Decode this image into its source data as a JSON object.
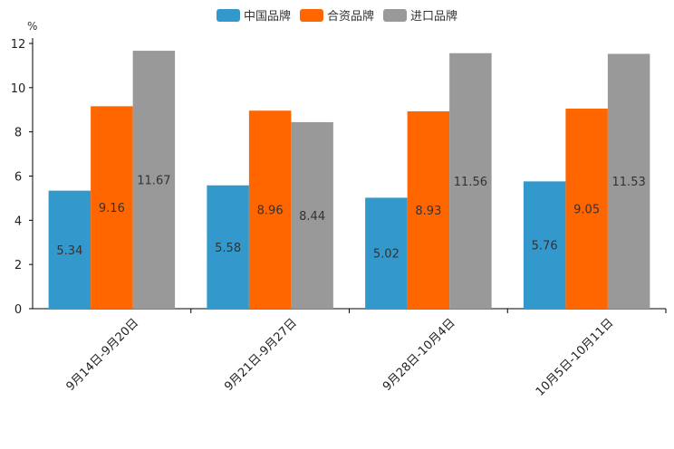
{
  "chart_data": {
    "type": "bar",
    "unit": "%",
    "categories": [
      "9月14日-9月20日",
      "9月21日-9月27日",
      "9月28日-10月4日",
      "10月5日-10月11日"
    ],
    "series": [
      {
        "name": "中国品牌",
        "color": "#3399cc",
        "values": [
          5.34,
          5.58,
          5.02,
          5.76
        ],
        "labels": [
          "5.34",
          "5.58",
          "5.02",
          "5.76"
        ]
      },
      {
        "name": "合资品牌",
        "color": "#ff6600",
        "values": [
          9.16,
          8.96,
          8.93,
          9.05
        ],
        "labels": [
          "9.16",
          "8.96",
          "8.93",
          "9.05"
        ]
      },
      {
        "name": "进口品牌",
        "color": "#999999",
        "values": [
          11.67,
          8.44,
          11.56,
          11.53
        ],
        "labels": [
          "11.67",
          "8.44",
          "11.56",
          "11.53"
        ]
      }
    ],
    "yticks": [
      "0",
      "2",
      "4",
      "6",
      "8",
      "10",
      "12"
    ],
    "ylim": [
      0,
      12
    ],
    "legend_position": "top-center",
    "grid": false
  }
}
